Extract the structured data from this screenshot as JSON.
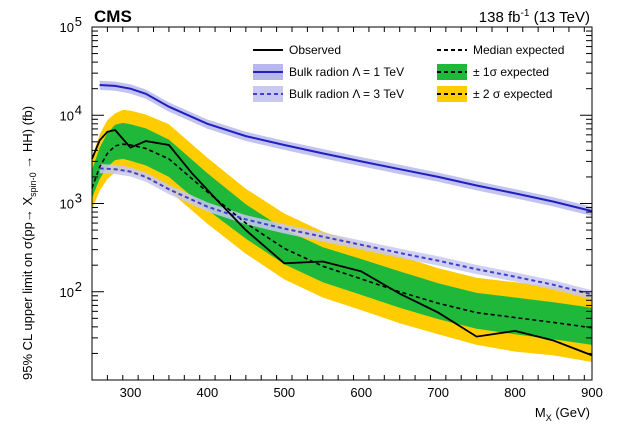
{
  "chart_data": {
    "type": "line",
    "experiment": "CMS",
    "lumi": "138 fb",
    "lumi_sup": "-1",
    "lumi_energy": " (13 TeV)",
    "xlabel_main": "M",
    "xlabel_sub": "X",
    "xlabel_unit": " (GeV)",
    "ylabel_text": "95% CL upper limit on σ(pp→ X",
    "ylabel_sub": "spin-0",
    "ylabel_tail": " → HH) (fb)",
    "xlim": [
      250,
      900
    ],
    "ylim": [
      10,
      100000
    ],
    "yscale": "log",
    "x_ticks": [
      300,
      400,
      500,
      600,
      700,
      800,
      900
    ],
    "y_ticks": [
      {
        "base": "10",
        "exp": "2",
        "value": 100
      },
      {
        "base": "10",
        "exp": "3",
        "value": 1000
      },
      {
        "base": "10",
        "exp": "4",
        "value": 10000
      },
      {
        "base": "10",
        "exp": "5",
        "value": 100000
      }
    ],
    "legend": {
      "observed": "Observed",
      "median": "Median expected",
      "bulk1": "Bulk radion Λ = 1 TeV",
      "sigma1": "± 1σ expected",
      "bulk3": "Bulk radion Λ = 3 TeV",
      "sigma2": "± 2 σ expected"
    },
    "colors": {
      "observed": "#000000",
      "median": "#000000",
      "bulk1": "#2020c0",
      "bulk1_band": "#b8b8ec",
      "bulk3": "#4040d0",
      "bulk3_band": "#c8c8f0",
      "sigma1": "#1fb83a",
      "sigma2": "#ffcc00"
    },
    "series": [
      {
        "name": "Observed",
        "x": [
          250,
          260,
          270,
          280,
          290,
          300,
          320,
          350,
          380,
          410,
          450,
          500,
          550,
          600,
          650,
          700,
          750,
          800,
          850,
          900
        ],
        "values": [
          3200,
          5200,
          6500,
          6800,
          5400,
          4300,
          5100,
          4600,
          2200,
          1150,
          500,
          210,
          220,
          170,
          95,
          58,
          31,
          36,
          28,
          19
        ]
      },
      {
        "name": "Median expected",
        "x": [
          250,
          260,
          270,
          280,
          290,
          300,
          320,
          350,
          400,
          450,
          500,
          550,
          600,
          650,
          700,
          750,
          800,
          850,
          900
        ],
        "values": [
          1500,
          2600,
          3700,
          4500,
          4700,
          4600,
          4200,
          3200,
          1350,
          600,
          310,
          195,
          140,
          100,
          74,
          58,
          51,
          45,
          39
        ]
      },
      {
        "name": "Bulk radion Λ = 1 TeV",
        "x": [
          260,
          280,
          300,
          320,
          350,
          400,
          450,
          500,
          550,
          600,
          650,
          700,
          750,
          800,
          850,
          900
        ],
        "values": [
          22000,
          21500,
          20000,
          17500,
          12500,
          8000,
          5800,
          4600,
          3700,
          3000,
          2450,
          2000,
          1600,
          1300,
          1050,
          820
        ]
      },
      {
        "name": "Bulk radion Λ = 3 TeV",
        "x": [
          260,
          280,
          300,
          320,
          350,
          400,
          450,
          500,
          550,
          600,
          650,
          700,
          750,
          800,
          850,
          900
        ],
        "values": [
          2500,
          2450,
          2300,
          2000,
          1450,
          920,
          660,
          520,
          420,
          340,
          275,
          225,
          180,
          148,
          120,
          93
        ]
      }
    ],
    "bands": {
      "x": [
        250,
        260,
        270,
        280,
        290,
        300,
        320,
        350,
        400,
        450,
        500,
        550,
        600,
        650,
        700,
        750,
        800,
        850,
        900
      ],
      "sigma1_low": [
        1150,
        1900,
        2600,
        3100,
        3200,
        3050,
        2700,
        2000,
        850,
        400,
        205,
        128,
        92,
        66,
        49,
        38,
        33,
        29,
        25
      ],
      "sigma1_high": [
        2400,
        4300,
        6300,
        7800,
        8200,
        7900,
        7100,
        5300,
        2200,
        980,
        510,
        320,
        235,
        170,
        125,
        97,
        86,
        76,
        66
      ],
      "sigma2_low": [
        850,
        1400,
        1900,
        2250,
        2300,
        2200,
        1900,
        1400,
        590,
        270,
        138,
        86,
        62,
        44,
        33,
        25,
        21,
        19,
        16
      ],
      "sigma2_high": [
        3300,
        6100,
        8800,
        10500,
        11500,
        11300,
        10200,
        7900,
        3300,
        1470,
        770,
        480,
        350,
        255,
        185,
        144,
        128,
        114,
        100
      ],
      "bulk_rel_width": 0.12
    }
  }
}
